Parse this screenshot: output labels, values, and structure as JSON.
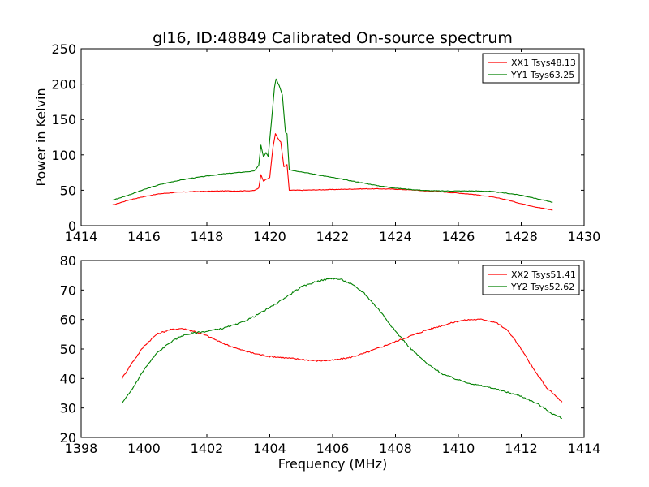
{
  "figure": {
    "title": "gl16, ID:48849 Calibrated On-source spectrum"
  },
  "chart_data": [
    {
      "type": "line",
      "title": "gl16, ID:48849 Calibrated On-source spectrum",
      "xlabel": "",
      "ylabel": "Power in Kelvin",
      "xlim": [
        1414,
        1430
      ],
      "ylim": [
        0,
        250
      ],
      "xticks": [
        "1414",
        "1416",
        "1418",
        "1420",
        "1422",
        "1424",
        "1426",
        "1428",
        "1430"
      ],
      "yticks": [
        "0",
        "50",
        "100",
        "150",
        "200",
        "250"
      ],
      "grid": false,
      "legend_position": "top-right",
      "series": [
        {
          "name": "XX1 Tsys48.13",
          "color": "#ff0000",
          "x": [
            1415.0,
            1415.5,
            1416.0,
            1416.5,
            1417.0,
            1417.5,
            1418.0,
            1418.5,
            1419.0,
            1419.5,
            1419.65,
            1419.72,
            1419.8,
            1419.9,
            1420.0,
            1420.1,
            1420.18,
            1420.25,
            1420.35,
            1420.45,
            1420.55,
            1420.62,
            1420.75,
            1421.0,
            1421.5,
            1422.0,
            1422.5,
            1423.0,
            1423.5,
            1424.0,
            1424.5,
            1425.0,
            1425.5,
            1426.0,
            1426.5,
            1427.0,
            1427.5,
            1428.0,
            1428.5,
            1429.0
          ],
          "y": [
            29,
            36,
            41,
            45,
            47,
            48,
            48.5,
            49,
            49,
            49.5,
            53,
            72,
            63,
            66,
            68,
            110,
            130,
            124,
            118,
            83,
            86,
            50,
            50,
            50,
            50.5,
            51,
            51.5,
            52,
            52,
            51.5,
            50.5,
            49,
            47.5,
            46,
            44,
            41,
            37,
            31,
            26,
            22
          ]
        },
        {
          "name": "YY1 Tsys63.25",
          "color": "#008000",
          "x": [
            1415.0,
            1415.5,
            1416.0,
            1416.5,
            1417.0,
            1417.5,
            1418.0,
            1418.5,
            1419.0,
            1419.5,
            1419.65,
            1419.72,
            1419.8,
            1419.88,
            1419.95,
            1420.05,
            1420.15,
            1420.2,
            1420.3,
            1420.4,
            1420.5,
            1420.55,
            1420.62,
            1420.75,
            1421.0,
            1421.5,
            1422.0,
            1422.5,
            1423.0,
            1423.5,
            1424.0,
            1424.5,
            1425.0,
            1425.5,
            1426.0,
            1426.5,
            1427.0,
            1427.5,
            1428.0,
            1428.5,
            1429.0
          ],
          "y": [
            36,
            43,
            51,
            58,
            63,
            67,
            70,
            73,
            75,
            77,
            85,
            114,
            97,
            103,
            98,
            145,
            195,
            207,
            198,
            185,
            132,
            130,
            79,
            78,
            76,
            72,
            68,
            64,
            60,
            56,
            53,
            51,
            49.5,
            49,
            49,
            49,
            48.5,
            46,
            43,
            38,
            33
          ]
        }
      ]
    },
    {
      "type": "line",
      "title": "",
      "xlabel": "Frequency (MHz)",
      "ylabel": "",
      "xlim": [
        1398,
        1414
      ],
      "ylim": [
        20,
        80
      ],
      "xticks": [
        "1398",
        "1400",
        "1402",
        "1404",
        "1406",
        "1408",
        "1410",
        "1412",
        "1414"
      ],
      "yticks": [
        "20",
        "30",
        "40",
        "50",
        "60",
        "70",
        "80"
      ],
      "grid": false,
      "legend_position": "top-right",
      "series": [
        {
          "name": "XX2 Tsys51.41",
          "color": "#ff0000",
          "x": [
            1399.3,
            1399.6,
            1400.0,
            1400.4,
            1400.8,
            1401.2,
            1401.6,
            1402.0,
            1402.5,
            1403.0,
            1403.5,
            1404.0,
            1404.5,
            1405.0,
            1405.5,
            1406.0,
            1406.5,
            1407.0,
            1407.5,
            1408.0,
            1408.5,
            1409.0,
            1409.5,
            1410.0,
            1410.4,
            1410.8,
            1411.2,
            1411.6,
            1412.0,
            1412.4,
            1412.8,
            1413.3
          ],
          "y": [
            40,
            45,
            51,
            55,
            56.5,
            57,
            56,
            54.5,
            52,
            50,
            48.5,
            47.5,
            47,
            46.5,
            46,
            46.2,
            47,
            48.5,
            50.5,
            52.5,
            54.5,
            56.5,
            58,
            59.5,
            60,
            60,
            59,
            56,
            50,
            43,
            37,
            32
          ]
        },
        {
          "name": "YY2 Tsys52.62",
          "color": "#008000",
          "x": [
            1399.3,
            1399.6,
            1400.0,
            1400.4,
            1400.8,
            1401.2,
            1401.6,
            1402.0,
            1402.5,
            1403.0,
            1403.5,
            1404.0,
            1404.5,
            1405.0,
            1405.5,
            1406.0,
            1406.3,
            1406.6,
            1407.0,
            1407.5,
            1408.0,
            1408.5,
            1409.0,
            1409.5,
            1410.0,
            1410.5,
            1411.0,
            1411.5,
            1412.0,
            1412.5,
            1413.0,
            1413.3
          ],
          "y": [
            31.5,
            36,
            43,
            48.5,
            52,
            54.5,
            55.5,
            56,
            57,
            58.5,
            61,
            64,
            67.5,
            71,
            73,
            74,
            73.5,
            72,
            69,
            63,
            56,
            50,
            45,
            41.5,
            39.5,
            38,
            37,
            35.5,
            34,
            31.5,
            28,
            26.5
          ]
        }
      ]
    }
  ]
}
